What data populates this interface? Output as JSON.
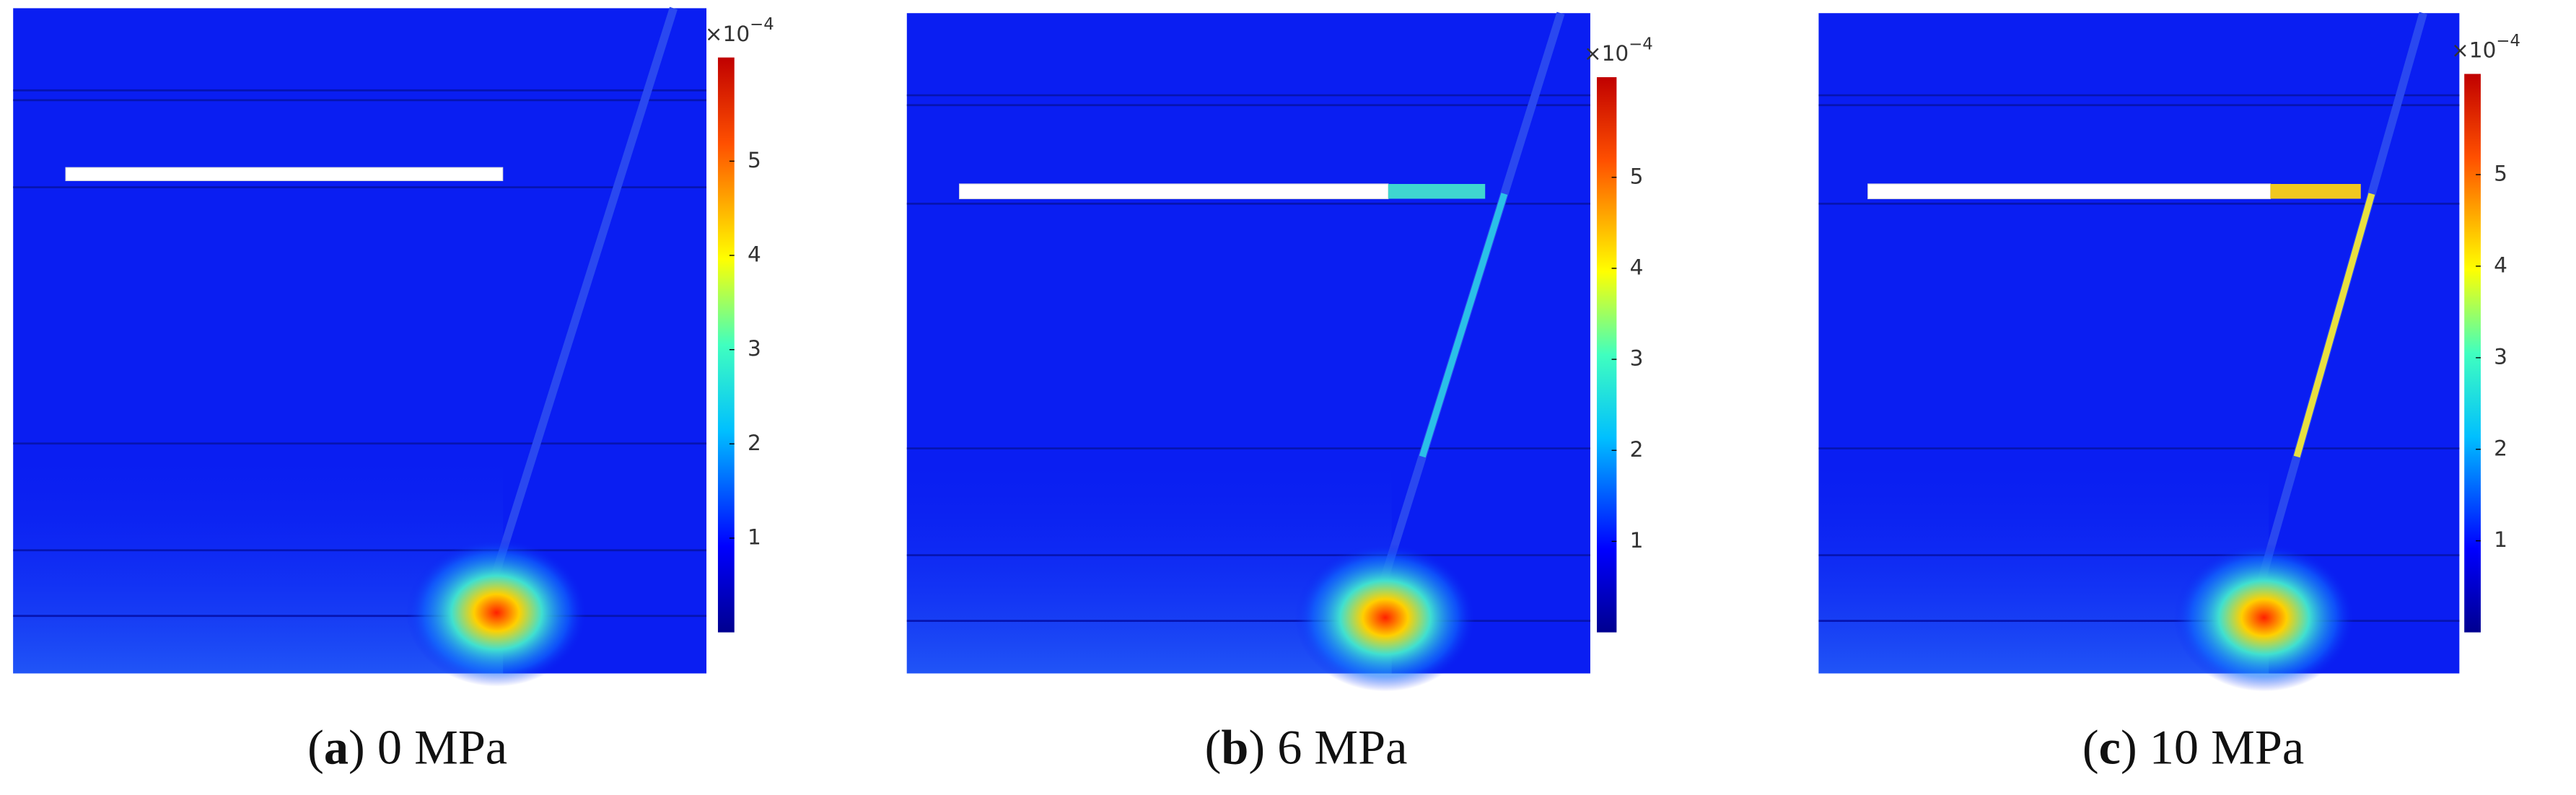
{
  "panels": [
    {
      "caption": {
        "open": "(",
        "label": "a",
        "rest": ") 0 MPa"
      },
      "colorbar": {
        "multiplier": "×10",
        "exponent": "−4",
        "range": [
          0,
          6.1
        ],
        "ticks": [
          1,
          2,
          3,
          4,
          5
        ]
      }
    },
    {
      "caption": {
        "open": "(",
        "label": "b",
        "rest": ") 6 MPa"
      },
      "colorbar": {
        "multiplier": "×10",
        "exponent": "−4",
        "range": [
          0,
          6.1
        ],
        "ticks": [
          1,
          2,
          3,
          4,
          5
        ]
      }
    },
    {
      "caption": {
        "open": "(",
        "label": "c",
        "rest": ") 10 MPa"
      },
      "colorbar": {
        "multiplier": "×10",
        "exponent": "−4",
        "range": [
          0,
          6.1
        ],
        "ticks": [
          1,
          2,
          3,
          4,
          5
        ]
      }
    }
  ]
}
